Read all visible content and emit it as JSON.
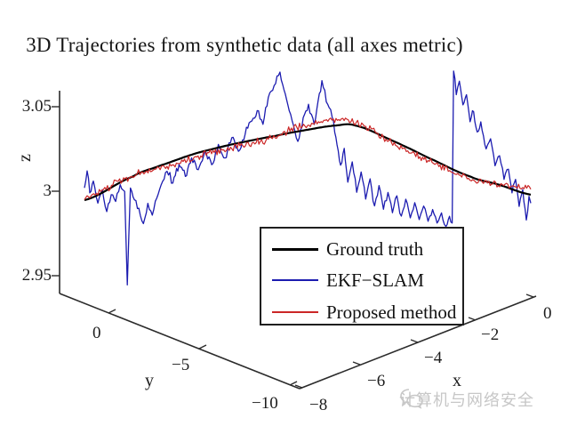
{
  "title": "3D Trajectories from synthetic data (all axes metric)",
  "legend": {
    "items": [
      {
        "label": "Ground truth",
        "color": "#000000"
      },
      {
        "label": "EKF−SLAM",
        "color": "#1c1cb0"
      },
      {
        "label": "Proposed method",
        "color": "#cb2727"
      }
    ]
  },
  "watermark": {
    "label": "计算机与网络安全",
    "icon": "wechat-logo-icon",
    "color": "#c7c7c7"
  },
  "colors": {
    "ground_truth": "#000000",
    "ekf_slam": "#1c1cb0",
    "proposed": "#cb2727",
    "axis": "#2b2b2b",
    "background": "#ffffff"
  },
  "chart_data": {
    "type": "line",
    "projection": "3d",
    "title": "3D Trajectories from synthetic data (all axes metric)",
    "grid": false,
    "legend_position": "lower-center-inside",
    "axes": {
      "x": {
        "label": "x",
        "ticks": [
          "−8",
          "−6",
          "−4",
          "−2",
          "0"
        ],
        "range": [
          -8,
          0
        ]
      },
      "y": {
        "label": "y",
        "ticks": [
          "0",
          "−5",
          "−10"
        ],
        "range": [
          0,
          -10
        ]
      },
      "z": {
        "label": "z",
        "ticks": [
          "3.05",
          "3",
          "2.95"
        ],
        "range": [
          2.95,
          3.05
        ]
      }
    },
    "path_note": "Trajectories run diagonally across the floor from (x≈−8, y≈0) to (x≈0, y≈−10); t is normalized arc position. z values read off the z-axis.",
    "series": [
      {
        "name": "Ground truth",
        "color": "#000000",
        "width": 2.2,
        "style": "smooth",
        "points": [
          [
            0,
            2.9947
          ],
          [
            0.11,
            3.009
          ],
          [
            0.169,
            3.0153
          ],
          [
            0.249,
            3.0226
          ],
          [
            0.329,
            3.028
          ],
          [
            0.428,
            3.0332
          ],
          [
            0.498,
            3.0368
          ],
          [
            0.564,
            3.0395
          ],
          [
            0.607,
            3.0395
          ],
          [
            0.687,
            3.031
          ],
          [
            0.767,
            3.021
          ],
          [
            0.866,
            3.0095
          ],
          [
            0.926,
            3.005
          ],
          [
            1,
            2.999
          ]
        ]
      },
      {
        "name": "EKF−SLAM",
        "color": "#1c1cb0",
        "width": 1.3,
        "style": "noisy",
        "noise_sigma": 0.0015,
        "densify_step": 0.003,
        "points": [
          [
            0,
            3.002
          ],
          [
            0.006,
            3.012
          ],
          [
            0.012,
            2.999
          ],
          [
            0.02,
            3.006
          ],
          [
            0.03,
            2.993
          ],
          [
            0.04,
            3.001
          ],
          [
            0.05,
            2.988
          ],
          [
            0.06,
            2.998
          ],
          [
            0.07,
            2.994
          ],
          [
            0.08,
            3.004
          ],
          [
            0.09,
            3.0
          ],
          [
            0.096,
            2.9447
          ],
          [
            0.103,
            3.002
          ],
          [
            0.112,
            2.995
          ],
          [
            0.122,
            2.99
          ],
          [
            0.132,
            2.981
          ],
          [
            0.142,
            2.993
          ],
          [
            0.152,
            2.986
          ],
          [
            0.162,
            2.996
          ],
          [
            0.172,
            3.004
          ],
          [
            0.185,
            3.012
          ],
          [
            0.198,
            3.005
          ],
          [
            0.212,
            3.016
          ],
          [
            0.226,
            3.009
          ],
          [
            0.24,
            3.02
          ],
          [
            0.255,
            3.013
          ],
          [
            0.27,
            3.024
          ],
          [
            0.285,
            3.016
          ],
          [
            0.3,
            3.028
          ],
          [
            0.315,
            3.02
          ],
          [
            0.33,
            3.032
          ],
          [
            0.345,
            3.024
          ],
          [
            0.36,
            3.034
          ],
          [
            0.375,
            3.042
          ],
          [
            0.39,
            3.048
          ],
          [
            0.4,
            3.04
          ],
          [
            0.412,
            3.056
          ],
          [
            0.425,
            3.063
          ],
          [
            0.438,
            3.071
          ],
          [
            0.45,
            3.058
          ],
          [
            0.462,
            3.046
          ],
          [
            0.478,
            3.03
          ],
          [
            0.49,
            3.044
          ],
          [
            0.502,
            3.052
          ],
          [
            0.515,
            3.04
          ],
          [
            0.532,
            3.066
          ],
          [
            0.545,
            3.052
          ],
          [
            0.558,
            3.042
          ],
          [
            0.566,
            3.028
          ],
          [
            0.574,
            3.016
          ],
          [
            0.582,
            3.026
          ],
          [
            0.59,
            3.006
          ],
          [
            0.6,
            3.018
          ],
          [
            0.61,
            3.0
          ],
          [
            0.62,
            3.012
          ],
          [
            0.63,
            2.996
          ],
          [
            0.64,
            3.008
          ],
          [
            0.65,
            2.992
          ],
          [
            0.66,
            3.004
          ],
          [
            0.67,
            2.99
          ],
          [
            0.68,
            3.0
          ],
          [
            0.69,
            2.988
          ],
          [
            0.7,
            2.998
          ],
          [
            0.71,
            2.986
          ],
          [
            0.72,
            2.996
          ],
          [
            0.73,
            2.985
          ],
          [
            0.74,
            2.994
          ],
          [
            0.75,
            2.984
          ],
          [
            0.76,
            2.992
          ],
          [
            0.77,
            2.983
          ],
          [
            0.78,
            2.99
          ],
          [
            0.79,
            2.982
          ],
          [
            0.8,
            2.988
          ],
          [
            0.81,
            2.98
          ],
          [
            0.818,
            2.986
          ],
          [
            0.824,
            2.982
          ],
          [
            0.827,
            3.072
          ],
          [
            0.833,
            3.058
          ],
          [
            0.84,
            3.066
          ],
          [
            0.848,
            3.052
          ],
          [
            0.856,
            3.058
          ],
          [
            0.864,
            3.042
          ],
          [
            0.872,
            3.048
          ],
          [
            0.88,
            3.036
          ],
          [
            0.888,
            3.042
          ],
          [
            0.9,
            3.026
          ],
          [
            0.91,
            3.032
          ],
          [
            0.92,
            3.016
          ],
          [
            0.93,
            3.022
          ],
          [
            0.94,
            3.008
          ],
          [
            0.95,
            3.014
          ],
          [
            0.958,
            3.0
          ],
          [
            0.966,
            3.008
          ],
          [
            0.974,
            2.992
          ],
          [
            0.982,
            3.002
          ],
          [
            0.99,
            2.984
          ],
          [
            0.996,
            2.998
          ],
          [
            1,
            2.994
          ]
        ]
      },
      {
        "name": "Proposed method",
        "color": "#cb2727",
        "width": 1.2,
        "style": "ground-truth-plus-bias-noise",
        "noise_sigma": 0.0013,
        "n_points": 330,
        "bias_points": [
          [
            0,
            0.0018
          ],
          [
            0.08,
            0.001
          ],
          [
            0.15,
            -0.001
          ],
          [
            0.2,
            -0.002
          ],
          [
            0.3,
            -0.0025
          ],
          [
            0.42,
            -0.001
          ],
          [
            0.47,
            0.002
          ],
          [
            0.52,
            0.0035
          ],
          [
            0.58,
            0.003
          ],
          [
            0.63,
            0.001
          ],
          [
            0.68,
            -0.001
          ],
          [
            0.74,
            -0.002
          ],
          [
            0.8,
            -0.0022
          ],
          [
            0.86,
            -0.0015
          ],
          [
            0.92,
            0.0
          ],
          [
            0.96,
            0.002
          ],
          [
            1,
            0.0042
          ]
        ]
      }
    ]
  }
}
